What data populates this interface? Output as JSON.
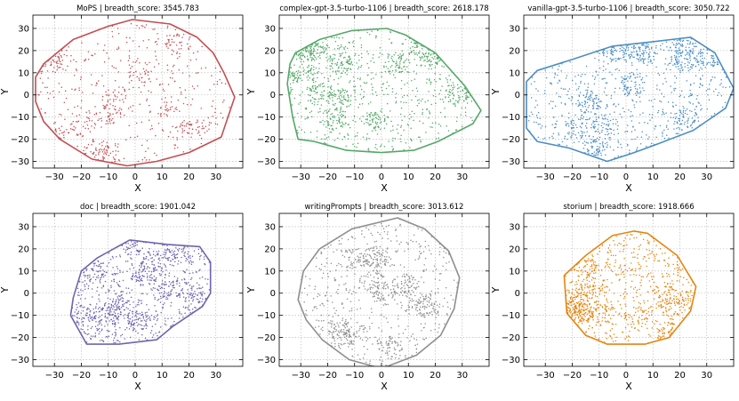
{
  "chart_data": [
    {
      "type": "scatter",
      "title": "MoPS | breadth_score: 3545.783",
      "xlabel": "X",
      "ylabel": "Y",
      "xlim": [
        -38,
        40
      ],
      "ylim": [
        -33,
        36
      ],
      "xticks": [
        -30,
        -20,
        -10,
        0,
        10,
        20,
        30
      ],
      "yticks": [
        -30,
        -20,
        -10,
        0,
        10,
        20,
        30
      ],
      "grid": true,
      "color": "#c44e52",
      "n_points": 700,
      "seed": 11,
      "hull": [
        [
          -37,
          8
        ],
        [
          -34,
          14
        ],
        [
          -23,
          25
        ],
        [
          -10,
          31
        ],
        [
          -1,
          34
        ],
        [
          13,
          32
        ],
        [
          23,
          26
        ],
        [
          29,
          19
        ],
        [
          33,
          10
        ],
        [
          37,
          -1
        ],
        [
          32,
          -19
        ],
        [
          20,
          -26
        ],
        [
          8,
          -30
        ],
        [
          -3,
          -32
        ],
        [
          -16,
          -29
        ],
        [
          -28,
          -20
        ],
        [
          -34,
          -12
        ],
        [
          -37,
          -3
        ]
      ]
    },
    {
      "type": "scatter",
      "title": "complex-gpt-3.5-turbo-1106 | breadth_score: 2618.178",
      "xlabel": "X",
      "ylabel": "Y",
      "xlim": [
        -38,
        40
      ],
      "ylim": [
        -33,
        36
      ],
      "xticks": [
        -30,
        -20,
        -10,
        0,
        10,
        20,
        30
      ],
      "yticks": [
        -30,
        -20,
        -10,
        0,
        10,
        20,
        30
      ],
      "grid": true,
      "color": "#55a868",
      "n_points": 1200,
      "seed": 22,
      "hull": [
        [
          -34,
          14
        ],
        [
          -32,
          19
        ],
        [
          -23,
          25
        ],
        [
          -11,
          29
        ],
        [
          2,
          30
        ],
        [
          9,
          27
        ],
        [
          20,
          19
        ],
        [
          31,
          4
        ],
        [
          37,
          -7
        ],
        [
          34,
          -13
        ],
        [
          21,
          -21
        ],
        [
          12,
          -25
        ],
        [
          0,
          -26
        ],
        [
          -13,
          -25
        ],
        [
          -25,
          -21
        ],
        [
          -31,
          -20
        ],
        [
          -33,
          -10
        ],
        [
          -35,
          5
        ]
      ]
    },
    {
      "type": "scatter",
      "title": "vanilla-gpt-3.5-turbo-1106 | breadth_score: 3050.722",
      "xlabel": "X",
      "ylabel": "Y",
      "xlim": [
        -38,
        40
      ],
      "ylim": [
        -33,
        36
      ],
      "xticks": [
        -30,
        -20,
        -10,
        0,
        10,
        20,
        30
      ],
      "yticks": [
        -30,
        -20,
        -10,
        0,
        10,
        20,
        30
      ],
      "grid": true,
      "color": "#4c8ec4",
      "n_points": 1200,
      "seed": 33,
      "hull": [
        [
          -37,
          6
        ],
        [
          -33,
          11
        ],
        [
          -20,
          16
        ],
        [
          -5,
          22
        ],
        [
          10,
          24
        ],
        [
          24,
          26
        ],
        [
          33,
          19
        ],
        [
          40,
          3
        ],
        [
          37,
          -6
        ],
        [
          25,
          -16
        ],
        [
          12,
          -22
        ],
        [
          3,
          -26
        ],
        [
          -7,
          -30
        ],
        [
          -21,
          -24
        ],
        [
          -33,
          -21
        ],
        [
          -37,
          -15
        ]
      ]
    },
    {
      "type": "scatter",
      "title": "doc | breadth_score: 1901.042",
      "xlabel": "X",
      "ylabel": "Y",
      "xlim": [
        -38,
        40
      ],
      "ylim": [
        -33,
        36
      ],
      "xticks": [
        -30,
        -20,
        -10,
        0,
        10,
        20,
        30
      ],
      "yticks": [
        -30,
        -20,
        -10,
        0,
        10,
        20,
        30
      ],
      "grid": true,
      "color": "#6e64ae",
      "n_points": 1100,
      "seed": 44,
      "hull": [
        [
          -20,
          10
        ],
        [
          -14,
          16
        ],
        [
          -2,
          24
        ],
        [
          12,
          22
        ],
        [
          24,
          21
        ],
        [
          28,
          14
        ],
        [
          28,
          0
        ],
        [
          25,
          -6
        ],
        [
          14,
          -15
        ],
        [
          8,
          -21
        ],
        [
          -6,
          -23
        ],
        [
          -18,
          -23
        ],
        [
          -24,
          -10
        ],
        [
          -23,
          -2
        ]
      ]
    },
    {
      "type": "scatter",
      "title": "writingPrompts | breadth_score: 3013.612",
      "xlabel": "X",
      "ylabel": "Y",
      "xlim": [
        -38,
        40
      ],
      "ylim": [
        -33,
        36
      ],
      "xticks": [
        -30,
        -20,
        -10,
        0,
        10,
        20,
        30
      ],
      "yticks": [
        -30,
        -20,
        -10,
        0,
        10,
        20,
        30
      ],
      "grid": true,
      "color": "#8f8f8f",
      "n_points": 1000,
      "seed": 55,
      "hull": [
        [
          -31,
          -3
        ],
        [
          -29,
          10
        ],
        [
          -23,
          20
        ],
        [
          -11,
          29
        ],
        [
          6,
          34
        ],
        [
          16,
          29
        ],
        [
          25,
          19
        ],
        [
          29,
          7
        ],
        [
          27,
          -7
        ],
        [
          22,
          -19
        ],
        [
          13,
          -28
        ],
        [
          0,
          -34
        ],
        [
          -12,
          -30
        ],
        [
          -22,
          -21
        ],
        [
          -28,
          -12
        ]
      ]
    },
    {
      "type": "scatter",
      "title": "storium | breadth_score: 1918.666",
      "xlabel": "X",
      "ylabel": "Y",
      "xlim": [
        -38,
        40
      ],
      "ylim": [
        -33,
        36
      ],
      "xticks": [
        -30,
        -20,
        -10,
        0,
        10,
        20,
        30
      ],
      "yticks": [
        -30,
        -20,
        -10,
        0,
        10,
        20,
        30
      ],
      "grid": true,
      "color": "#e5850f",
      "n_points": 1000,
      "seed": 66,
      "hull": [
        [
          -23,
          8
        ],
        [
          -15,
          17
        ],
        [
          -5,
          26
        ],
        [
          3,
          28
        ],
        [
          8,
          27
        ],
        [
          19,
          17
        ],
        [
          26,
          3
        ],
        [
          24,
          -8
        ],
        [
          16,
          -20
        ],
        [
          7,
          -23
        ],
        [
          -7,
          -23
        ],
        [
          -15,
          -19
        ],
        [
          -22,
          -9
        ]
      ]
    }
  ]
}
